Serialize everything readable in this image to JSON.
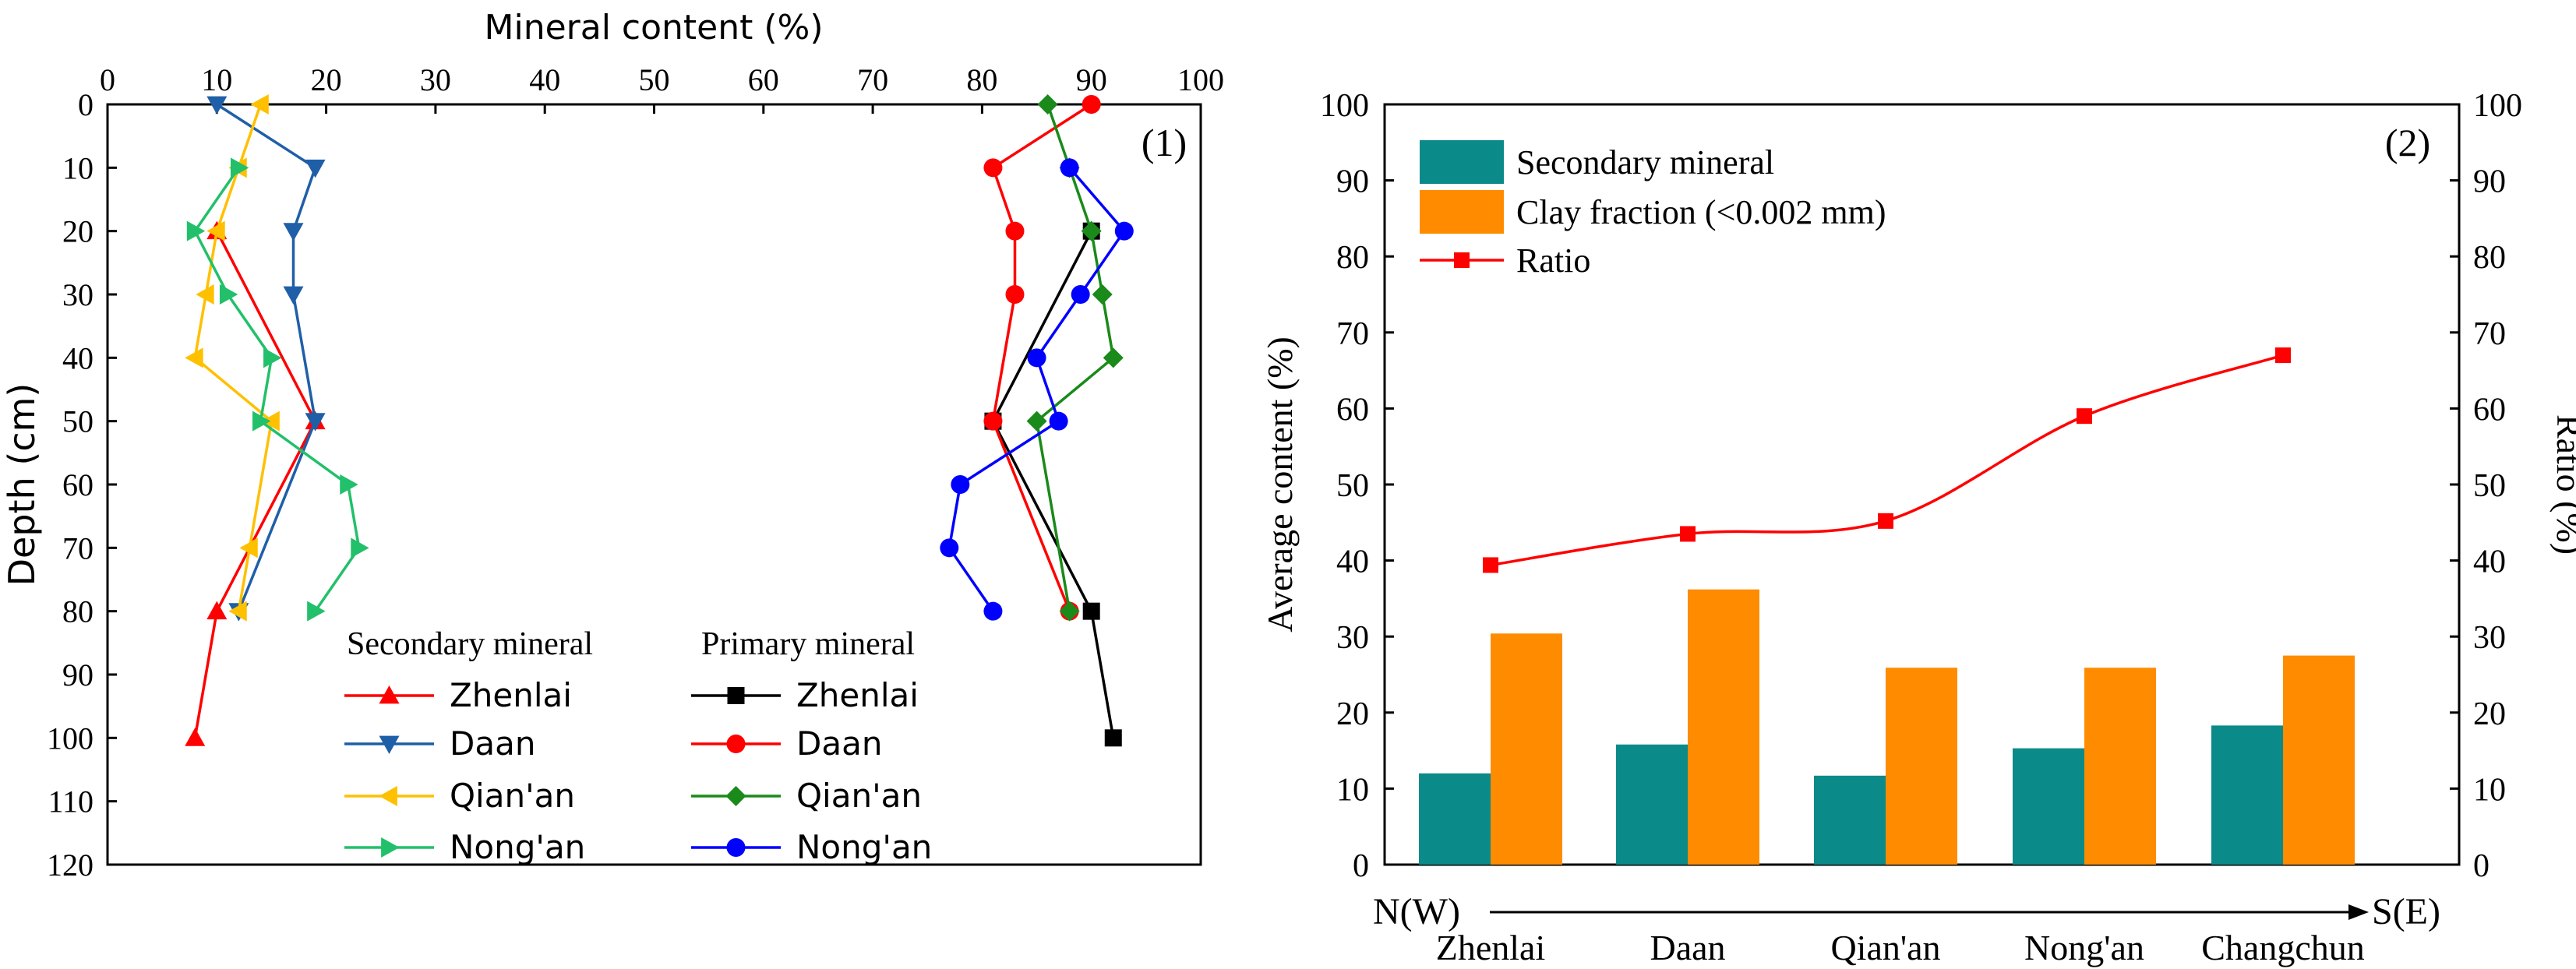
{
  "chart_data": [
    {
      "type": "line",
      "panel_label": "(1)",
      "xlabel": "Mineral content (%)",
      "ylabel": "Depth (cm)",
      "xlim": [
        0,
        100
      ],
      "ylim": [
        0,
        120
      ],
      "x_ticks": [
        0,
        10,
        20,
        30,
        40,
        50,
        60,
        70,
        80,
        90,
        100
      ],
      "y_ticks": [
        0,
        10,
        20,
        30,
        40,
        50,
        60,
        70,
        80,
        90,
        100,
        110,
        120
      ],
      "y_inverted": true,
      "legend_groups": [
        {
          "title": "Secondary mineral",
          "entries": [
            "Zhenlai",
            "Daan",
            "Qian'an",
            "Nong'an"
          ]
        },
        {
          "title": "Primary mineral",
          "entries": [
            "Zhenlai",
            "Daan",
            "Qian'an",
            "Nong'an"
          ]
        }
      ],
      "series": [
        {
          "group": "Secondary mineral",
          "name": "Zhenlai",
          "color": "#ff0000",
          "marker": "triangle-up",
          "points": [
            [
              10,
              20
            ],
            [
              19,
              50
            ],
            [
              10,
              80
            ],
            [
              8,
              100
            ]
          ]
        },
        {
          "group": "Secondary mineral",
          "name": "Daan",
          "color": "#1f5fa8",
          "marker": "triangle-down",
          "points": [
            [
              10,
              0
            ],
            [
              19,
              10
            ],
            [
              17,
              20
            ],
            [
              17,
              30
            ],
            [
              19,
              50
            ],
            [
              12,
              80
            ]
          ]
        },
        {
          "group": "Secondary mineral",
          "name": "Qian'an",
          "color": "#ffc000",
          "marker": "triangle-left",
          "points": [
            [
              14,
              0
            ],
            [
              12,
              10
            ],
            [
              10,
              20
            ],
            [
              9,
              30
            ],
            [
              8,
              40
            ],
            [
              15,
              50
            ],
            [
              13,
              70
            ],
            [
              12,
              80
            ]
          ]
        },
        {
          "group": "Secondary mineral",
          "name": "Nong'an",
          "color": "#22c06a",
          "marker": "triangle-right",
          "points": [
            [
              12,
              10
            ],
            [
              8,
              20
            ],
            [
              11,
              30
            ],
            [
              15,
              40
            ],
            [
              14,
              50
            ],
            [
              22,
              60
            ],
            [
              23,
              70
            ],
            [
              19,
              80
            ]
          ]
        },
        {
          "group": "Primary mineral",
          "name": "Zhenlai",
          "color": "#000000",
          "marker": "square",
          "points": [
            [
              90,
              20
            ],
            [
              81,
              50
            ],
            [
              90,
              80
            ],
            [
              92,
              100
            ]
          ]
        },
        {
          "group": "Primary mineral",
          "name": "Daan",
          "color": "#ff0000",
          "marker": "circle",
          "points": [
            [
              90,
              0
            ],
            [
              81,
              10
            ],
            [
              83,
              20
            ],
            [
              83,
              30
            ],
            [
              81,
              50
            ],
            [
              88,
              80
            ]
          ]
        },
        {
          "group": "Primary mineral",
          "name": "Qian'an",
          "color": "#1a8a1a",
          "marker": "diamond",
          "points": [
            [
              86,
              0
            ],
            [
              88,
              10
            ],
            [
              90,
              20
            ],
            [
              91,
              30
            ],
            [
              92,
              40
            ],
            [
              85,
              50
            ],
            [
              88,
              80
            ]
          ]
        },
        {
          "group": "Primary mineral",
          "name": "Nong'an",
          "color": "#0000ff",
          "marker": "circle",
          "points": [
            [
              88,
              10
            ],
            [
              93,
              20
            ],
            [
              89,
              30
            ],
            [
              85,
              40
            ],
            [
              87,
              50
            ],
            [
              78,
              60
            ],
            [
              77,
              70
            ],
            [
              81,
              80
            ]
          ]
        }
      ]
    },
    {
      "type": "bar",
      "panel_label": "(2)",
      "ylabel": "Average content (%)",
      "y2label": "Ratio (%)",
      "ylim": [
        0,
        100
      ],
      "y2lim": [
        0,
        100
      ],
      "y_ticks": [
        0,
        10,
        20,
        30,
        40,
        50,
        60,
        70,
        80,
        90,
        100
      ],
      "categories": [
        "Zhenlai",
        "Daan",
        "Qian'an",
        "Nong'an",
        "Changchun"
      ],
      "direction_start": "N(W)",
      "direction_end": "S(E)",
      "series": [
        {
          "name": "Secondary mineral",
          "color": "#0b8a8a",
          "values": [
            12,
            15.8,
            11.7,
            15.3,
            18.3
          ]
        },
        {
          "name": "Clay fraction (<0.002 mm)",
          "color": "#ff8c00",
          "values": [
            30.4,
            36.2,
            25.9,
            25.9,
            27.5
          ]
        }
      ],
      "line_series": {
        "name": "Ratio",
        "color": "#ff0000",
        "axis": "right",
        "values": [
          39.4,
          43.5,
          45.2,
          59,
          67
        ]
      }
    }
  ]
}
